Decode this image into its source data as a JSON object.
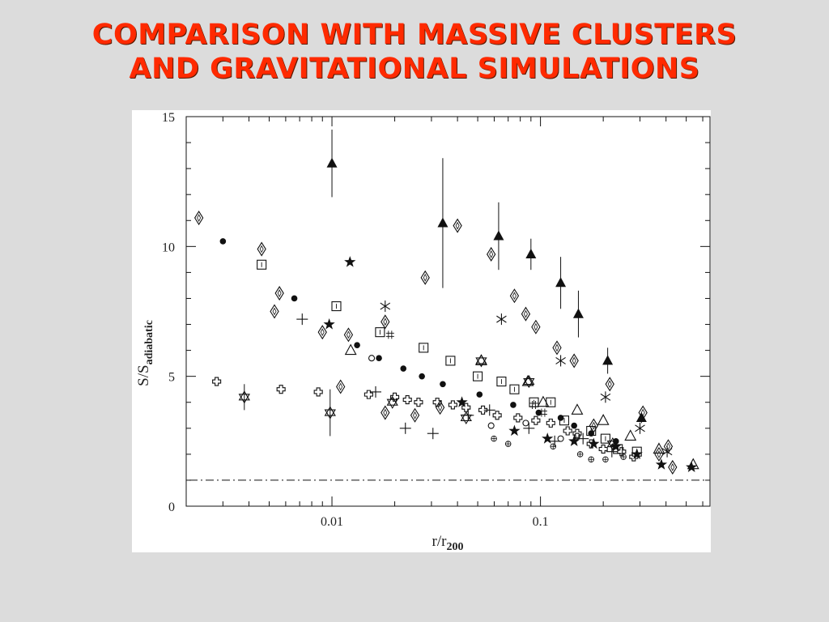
{
  "slide": {
    "title_line1": "COMPARISON WITH MASSIVE CLUSTERS",
    "title_line2": "AND GRAVITATIONAL SIMULATIONS"
  },
  "colors": {
    "background": "#dcdcdc",
    "title": "#ff2a00",
    "plot_background": "#ffffff",
    "ink": "#111111"
  },
  "chart_data": {
    "type": "scatter",
    "title": "",
    "xlabel": "r/r",
    "xlabel_subscript": "200",
    "ylabel": "S/S",
    "ylabel_subscript": "adiabatic",
    "x_scale": "log",
    "xlim": [
      0.002,
      0.65
    ],
    "ylim": [
      0,
      15
    ],
    "x_ticks": [
      {
        "value": 0.01,
        "label": "0.01"
      },
      {
        "value": 0.1,
        "label": "0.1"
      }
    ],
    "y_ticks": [
      {
        "value": 0,
        "label": "0"
      },
      {
        "value": 5,
        "label": "5"
      },
      {
        "value": 10,
        "label": "10"
      },
      {
        "value": 15,
        "label": "15"
      }
    ],
    "grid": false,
    "legend": "none",
    "reference_line": {
      "y": 1.0,
      "style": "dash-dot"
    },
    "series": [
      {
        "marker": "filled-triangle",
        "points": [
          {
            "x": 0.01,
            "y": 13.2,
            "err": 1.3
          },
          {
            "x": 0.034,
            "y": 10.9,
            "err": 2.5
          },
          {
            "x": 0.063,
            "y": 10.4,
            "err": 1.3
          },
          {
            "x": 0.09,
            "y": 9.7,
            "err": 0.6
          },
          {
            "x": 0.125,
            "y": 8.6,
            "err": 1.0
          },
          {
            "x": 0.152,
            "y": 7.4,
            "err": 0.9
          },
          {
            "x": 0.21,
            "y": 5.6,
            "err": 0.5
          },
          {
            "x": 0.305,
            "y": 3.4,
            "err": 0.2
          }
        ]
      },
      {
        "marker": "open-diamond",
        "points": [
          {
            "x": 0.0023,
            "y": 11.1
          },
          {
            "x": 0.0046,
            "y": 9.9
          },
          {
            "x": 0.0056,
            "y": 8.2
          },
          {
            "x": 0.0053,
            "y": 7.5
          },
          {
            "x": 0.009,
            "y": 6.7
          },
          {
            "x": 0.012,
            "y": 6.6
          },
          {
            "x": 0.011,
            "y": 4.6
          },
          {
            "x": 0.018,
            "y": 7.1
          },
          {
            "x": 0.028,
            "y": 8.8
          },
          {
            "x": 0.04,
            "y": 10.8
          },
          {
            "x": 0.058,
            "y": 9.7
          },
          {
            "x": 0.075,
            "y": 8.1
          },
          {
            "x": 0.085,
            "y": 7.4
          },
          {
            "x": 0.095,
            "y": 6.9
          },
          {
            "x": 0.12,
            "y": 6.1
          },
          {
            "x": 0.145,
            "y": 5.6
          },
          {
            "x": 0.215,
            "y": 4.7
          },
          {
            "x": 0.18,
            "y": 3.1
          },
          {
            "x": 0.31,
            "y": 3.6
          },
          {
            "x": 0.37,
            "y": 2.0
          },
          {
            "x": 0.41,
            "y": 2.3
          },
          {
            "x": 0.43,
            "y": 1.5
          },
          {
            "x": 0.025,
            "y": 3.5
          },
          {
            "x": 0.018,
            "y": 3.6
          },
          {
            "x": 0.033,
            "y": 3.8
          }
        ]
      },
      {
        "marker": "filled-circle",
        "points": [
          {
            "x": 0.003,
            "y": 10.2
          },
          {
            "x": 0.0066,
            "y": 8.0
          },
          {
            "x": 0.0132,
            "y": 6.2
          },
          {
            "x": 0.0168,
            "y": 5.7
          },
          {
            "x": 0.022,
            "y": 5.3
          },
          {
            "x": 0.027,
            "y": 5.0
          },
          {
            "x": 0.034,
            "y": 4.7
          },
          {
            "x": 0.051,
            "y": 4.3
          },
          {
            "x": 0.074,
            "y": 3.9
          },
          {
            "x": 0.098,
            "y": 3.6
          },
          {
            "x": 0.125,
            "y": 3.4
          },
          {
            "x": 0.145,
            "y": 3.1
          },
          {
            "x": 0.175,
            "y": 2.8
          },
          {
            "x": 0.23,
            "y": 2.5
          }
        ]
      },
      {
        "marker": "open-square",
        "points": [
          {
            "x": 0.0046,
            "y": 9.3
          },
          {
            "x": 0.0105,
            "y": 7.7
          },
          {
            "x": 0.017,
            "y": 6.7
          },
          {
            "x": 0.0275,
            "y": 6.1
          },
          {
            "x": 0.037,
            "y": 5.6
          },
          {
            "x": 0.05,
            "y": 5.0
          },
          {
            "x": 0.065,
            "y": 4.8
          },
          {
            "x": 0.075,
            "y": 4.5
          },
          {
            "x": 0.093,
            "y": 4.0
          },
          {
            "x": 0.112,
            "y": 4.0
          },
          {
            "x": 0.13,
            "y": 3.3
          },
          {
            "x": 0.175,
            "y": 2.9
          },
          {
            "x": 0.205,
            "y": 2.6
          },
          {
            "x": 0.235,
            "y": 2.2
          },
          {
            "x": 0.29,
            "y": 2.1
          }
        ]
      },
      {
        "marker": "filled-star",
        "points": [
          {
            "x": 0.0122,
            "y": 9.4
          },
          {
            "x": 0.0097,
            "y": 7.0
          },
          {
            "x": 0.042,
            "y": 4.0
          },
          {
            "x": 0.075,
            "y": 2.9
          },
          {
            "x": 0.108,
            "y": 2.6
          },
          {
            "x": 0.145,
            "y": 2.5
          },
          {
            "x": 0.18,
            "y": 2.4
          },
          {
            "x": 0.23,
            "y": 2.3
          },
          {
            "x": 0.29,
            "y": 2.0
          },
          {
            "x": 0.38,
            "y": 1.6
          },
          {
            "x": 0.53,
            "y": 1.5
          }
        ]
      },
      {
        "marker": "open-triangle",
        "points": [
          {
            "x": 0.0123,
            "y": 6.0
          },
          {
            "x": 0.052,
            "y": 5.6
          },
          {
            "x": 0.087,
            "y": 4.8
          },
          {
            "x": 0.103,
            "y": 4.0
          },
          {
            "x": 0.15,
            "y": 3.7
          },
          {
            "x": 0.2,
            "y": 3.3
          },
          {
            "x": 0.27,
            "y": 2.7
          },
          {
            "x": 0.37,
            "y": 2.2
          },
          {
            "x": 0.54,
            "y": 1.6
          }
        ]
      },
      {
        "marker": "asterisk",
        "points": [
          {
            "x": 0.018,
            "y": 7.7
          },
          {
            "x": 0.065,
            "y": 7.2
          },
          {
            "x": 0.125,
            "y": 5.6
          },
          {
            "x": 0.205,
            "y": 4.2
          },
          {
            "x": 0.3,
            "y": 3.0
          },
          {
            "x": 0.405,
            "y": 2.1
          }
        ]
      },
      {
        "marker": "plus",
        "points": [
          {
            "x": 0.0072,
            "y": 7.2
          },
          {
            "x": 0.0162,
            "y": 4.4
          },
          {
            "x": 0.0225,
            "y": 3.0
          },
          {
            "x": 0.0305,
            "y": 2.8
          },
          {
            "x": 0.045,
            "y": 3.5
          },
          {
            "x": 0.057,
            "y": 3.7
          },
          {
            "x": 0.088,
            "y": 3.0
          },
          {
            "x": 0.117,
            "y": 2.5
          },
          {
            "x": 0.16,
            "y": 2.6
          },
          {
            "x": 0.22,
            "y": 2.1
          }
        ]
      },
      {
        "marker": "swiss-cross",
        "points": [
          {
            "x": 0.0028,
            "y": 4.8
          },
          {
            "x": 0.0057,
            "y": 4.5
          },
          {
            "x": 0.0086,
            "y": 4.4
          },
          {
            "x": 0.015,
            "y": 4.3
          },
          {
            "x": 0.02,
            "y": 4.2
          },
          {
            "x": 0.023,
            "y": 4.1
          },
          {
            "x": 0.026,
            "y": 4.0
          },
          {
            "x": 0.032,
            "y": 4.0
          },
          {
            "x": 0.038,
            "y": 3.9
          },
          {
            "x": 0.044,
            "y": 3.8
          },
          {
            "x": 0.053,
            "y": 3.7
          },
          {
            "x": 0.062,
            "y": 3.5
          },
          {
            "x": 0.078,
            "y": 3.4
          },
          {
            "x": 0.095,
            "y": 3.3
          },
          {
            "x": 0.112,
            "y": 3.2
          },
          {
            "x": 0.135,
            "y": 2.9
          },
          {
            "x": 0.15,
            "y": 2.8
          },
          {
            "x": 0.175,
            "y": 2.4
          },
          {
            "x": 0.2,
            "y": 2.2
          },
          {
            "x": 0.245,
            "y": 2.1
          },
          {
            "x": 0.28,
            "y": 1.9
          }
        ]
      },
      {
        "marker": "star-of-david",
        "points": [
          {
            "x": 0.0038,
            "y": 4.2,
            "err": 0.5
          },
          {
            "x": 0.0098,
            "y": 3.6,
            "err": 0.9
          },
          {
            "x": 0.0195,
            "y": 4.0
          },
          {
            "x": 0.044,
            "y": 3.4
          },
          {
            "x": 0.052,
            "y": 5.6
          },
          {
            "x": 0.088,
            "y": 4.8
          },
          {
            "x": 0.222,
            "y": 2.4
          }
        ]
      },
      {
        "marker": "open-circle",
        "points": [
          {
            "x": 0.0155,
            "y": 5.7
          },
          {
            "x": 0.058,
            "y": 3.1
          },
          {
            "x": 0.085,
            "y": 3.2
          },
          {
            "x": 0.125,
            "y": 2.6
          },
          {
            "x": 0.15,
            "y": 2.7
          },
          {
            "x": 0.225,
            "y": 2.3
          }
        ]
      },
      {
        "marker": "circle-plus",
        "points": [
          {
            "x": 0.0598,
            "y": 2.6
          },
          {
            "x": 0.07,
            "y": 2.4
          },
          {
            "x": 0.115,
            "y": 2.3
          },
          {
            "x": 0.155,
            "y": 2.0
          },
          {
            "x": 0.175,
            "y": 1.8
          },
          {
            "x": 0.205,
            "y": 1.8
          },
          {
            "x": 0.25,
            "y": 1.9
          }
        ]
      },
      {
        "marker": "hash",
        "points": [
          {
            "x": 0.019,
            "y": 6.6
          },
          {
            "x": 0.093,
            "y": 3.9
          },
          {
            "x": 0.103,
            "y": 3.6
          }
        ]
      }
    ]
  }
}
